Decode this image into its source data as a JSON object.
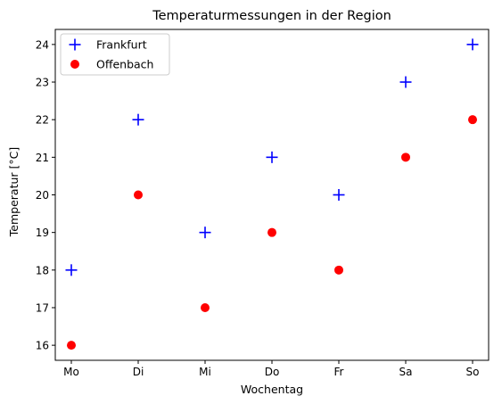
{
  "chart_data": {
    "type": "scatter",
    "title": "Temperaturmessungen in der Region",
    "xlabel": "Wochentag",
    "ylabel": "Temperatur [°C]",
    "categories": [
      "Mo",
      "Di",
      "Mi",
      "Do",
      "Fr",
      "Sa",
      "So"
    ],
    "ylim": [
      15.6,
      24.4
    ],
    "yticks": [
      16,
      17,
      18,
      19,
      20,
      21,
      22,
      23,
      24
    ],
    "grid": false,
    "legend_position": "top-left",
    "series": [
      {
        "name": "Frankfurt",
        "marker": "plus",
        "color": "#0000ff",
        "values": [
          18,
          22,
          19,
          21,
          20,
          23,
          24
        ]
      },
      {
        "name": "Offenbach",
        "marker": "circle",
        "color": "#ff0000",
        "values": [
          16,
          20,
          17,
          19,
          18,
          21,
          22
        ]
      }
    ]
  }
}
